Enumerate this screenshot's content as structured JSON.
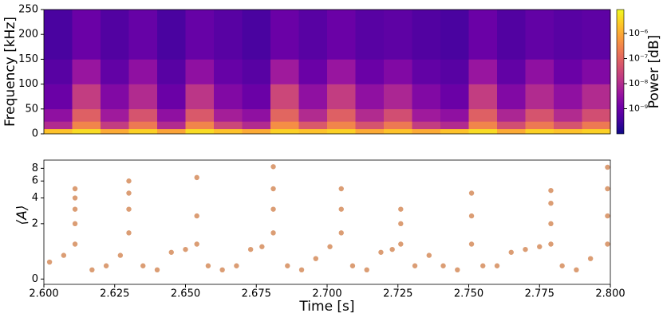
{
  "chart_data": [
    {
      "type": "heatmap",
      "ylabel": "Frequency [kHz]",
      "xlim": [
        2.6,
        2.8
      ],
      "ylim": [
        0,
        250
      ],
      "yticks": [
        0,
        50,
        100,
        150,
        200,
        250
      ],
      "time_bins": [
        2.6,
        2.61,
        2.62,
        2.63,
        2.64,
        2.65,
        2.66,
        2.67,
        2.68,
        2.69,
        2.7,
        2.71,
        2.72,
        2.73,
        2.74,
        2.75,
        2.76,
        2.77,
        2.78,
        2.79,
        2.8
      ],
      "freq_bins": [
        0,
        10,
        25,
        50,
        100,
        150,
        250
      ],
      "z": [
        [
          2e-06,
          4e-06,
          1e-06,
          3e-06,
          8e-07,
          4e-06,
          2e-06,
          1e-06,
          3e-06,
          2e-06,
          3e-06,
          1e-06,
          2e-06,
          1e-06,
          2e-06,
          4e-06,
          1e-06,
          3e-06,
          2e-06,
          3e-06
        ],
        [
          1e-08,
          3e-07,
          2e-08,
          2e-07,
          1e-08,
          3e-07,
          3e-08,
          1e-08,
          4e-07,
          6e-08,
          3e-07,
          5e-08,
          2e-07,
          2e-08,
          1e-08,
          3e-07,
          4e-08,
          2e-07,
          5e-08,
          2e-07
        ],
        [
          3e-09,
          8e-08,
          5e-09,
          5e-08,
          3e-09,
          6e-08,
          6e-09,
          3e-09,
          1e-07,
          1e-08,
          8e-08,
          1e-08,
          4e-08,
          5e-09,
          3e-09,
          8e-08,
          8e-09,
          5e-08,
          1e-08,
          4e-08
        ],
        [
          1e-09,
          2e-08,
          2e-09,
          1e-08,
          1e-09,
          1.5e-08,
          2e-09,
          1e-09,
          3e-08,
          3e-09,
          2e-08,
          3e-09,
          8e-09,
          2e-09,
          1e-09,
          2e-08,
          2e-09,
          1e-08,
          3e-09,
          1e-08
        ],
        [
          6e-10,
          4e-09,
          8e-10,
          3e-09,
          6e-10,
          3e-09,
          9e-10,
          6e-10,
          5e-09,
          1e-09,
          4e-09,
          1e-09,
          2e-09,
          8e-10,
          6e-10,
          4e-09,
          8e-10,
          3e-09,
          1e-09,
          2e-09
        ],
        [
          4e-10,
          1e-09,
          5e-10,
          9e-10,
          4e-10,
          9e-10,
          6e-10,
          4e-10,
          1e-09,
          6e-10,
          1e-09,
          6e-10,
          7e-10,
          5e-10,
          4e-10,
          1e-09,
          5e-10,
          8e-10,
          6e-10,
          7e-10
        ]
      ],
      "colormap": "plasma",
      "colorbar": {
        "label": "Power [dB]",
        "scale": "log",
        "lim": [
          1e-10,
          9e-06
        ],
        "ticks": [
          {
            "value": 1e-09,
            "label": "10⁻⁹"
          },
          {
            "value": 1e-08,
            "label": "10⁻⁸"
          },
          {
            "value": 1e-07,
            "label": "10⁻⁷"
          },
          {
            "value": 1e-06,
            "label": "10⁻⁶"
          }
        ]
      }
    },
    {
      "type": "scatter",
      "xlabel": "Time [s]",
      "ylabel": "⟨A⟩",
      "xlim": [
        2.6,
        2.8
      ],
      "ylim": [
        -0.1,
        9.6
      ],
      "yscale": "symlog",
      "xticks": [
        {
          "value": 2.6,
          "label": "2.600"
        },
        {
          "value": 2.625,
          "label": "2.625"
        },
        {
          "value": 2.65,
          "label": "2.650"
        },
        {
          "value": 2.675,
          "label": "2.675"
        },
        {
          "value": 2.7,
          "label": "2.700"
        },
        {
          "value": 2.725,
          "label": "2.725"
        },
        {
          "value": 2.75,
          "label": "2.750"
        },
        {
          "value": 2.775,
          "label": "2.775"
        },
        {
          "value": 2.8,
          "label": "2.800"
        }
      ],
      "yticks": [
        0,
        2,
        4,
        6,
        8
      ],
      "series": [
        {
          "color": "#c8692a",
          "x": [
            2.602,
            2.607,
            2.617,
            2.622,
            2.627,
            2.635,
            2.64,
            2.645,
            2.65,
            2.658,
            2.663,
            2.668,
            2.673,
            2.677,
            2.686,
            2.691,
            2.696,
            2.701,
            2.709,
            2.714,
            2.719,
            2.723,
            2.731,
            2.736,
            2.741,
            2.746,
            2.755,
            2.76,
            2.765,
            2.77,
            2.775,
            2.783,
            2.788,
            2.793,
            2.611,
            2.611,
            2.611,
            2.611,
            2.611,
            2.63,
            2.63,
            2.63,
            2.63,
            2.654,
            2.654,
            2.654,
            2.681,
            2.681,
            2.681,
            2.681,
            2.705,
            2.705,
            2.705,
            2.726,
            2.726,
            2.726,
            2.751,
            2.751,
            2.751,
            2.779,
            2.779,
            2.779,
            2.779,
            2.799,
            2.799,
            2.799,
            2.799
          ],
          "y": [
            0.4,
            0.6,
            0.2,
            0.3,
            0.6,
            0.3,
            0.2,
            0.7,
            0.8,
            0.3,
            0.2,
            0.3,
            0.8,
            0.9,
            0.3,
            0.2,
            0.5,
            0.9,
            0.3,
            0.2,
            0.7,
            0.8,
            0.3,
            0.6,
            0.3,
            0.2,
            0.3,
            0.3,
            0.7,
            0.8,
            0.9,
            0.3,
            0.2,
            0.5,
            1,
            2,
            3,
            4,
            5,
            1.5,
            3,
            4.5,
            6,
            1,
            2.5,
            6.5,
            1.5,
            3,
            5,
            8.3,
            1.5,
            3,
            5,
            1,
            2,
            3,
            1,
            2.5,
            4.5,
            1,
            2,
            3.5,
            4.8,
            1,
            2.5,
            5,
            8.2
          ]
        }
      ]
    }
  ]
}
